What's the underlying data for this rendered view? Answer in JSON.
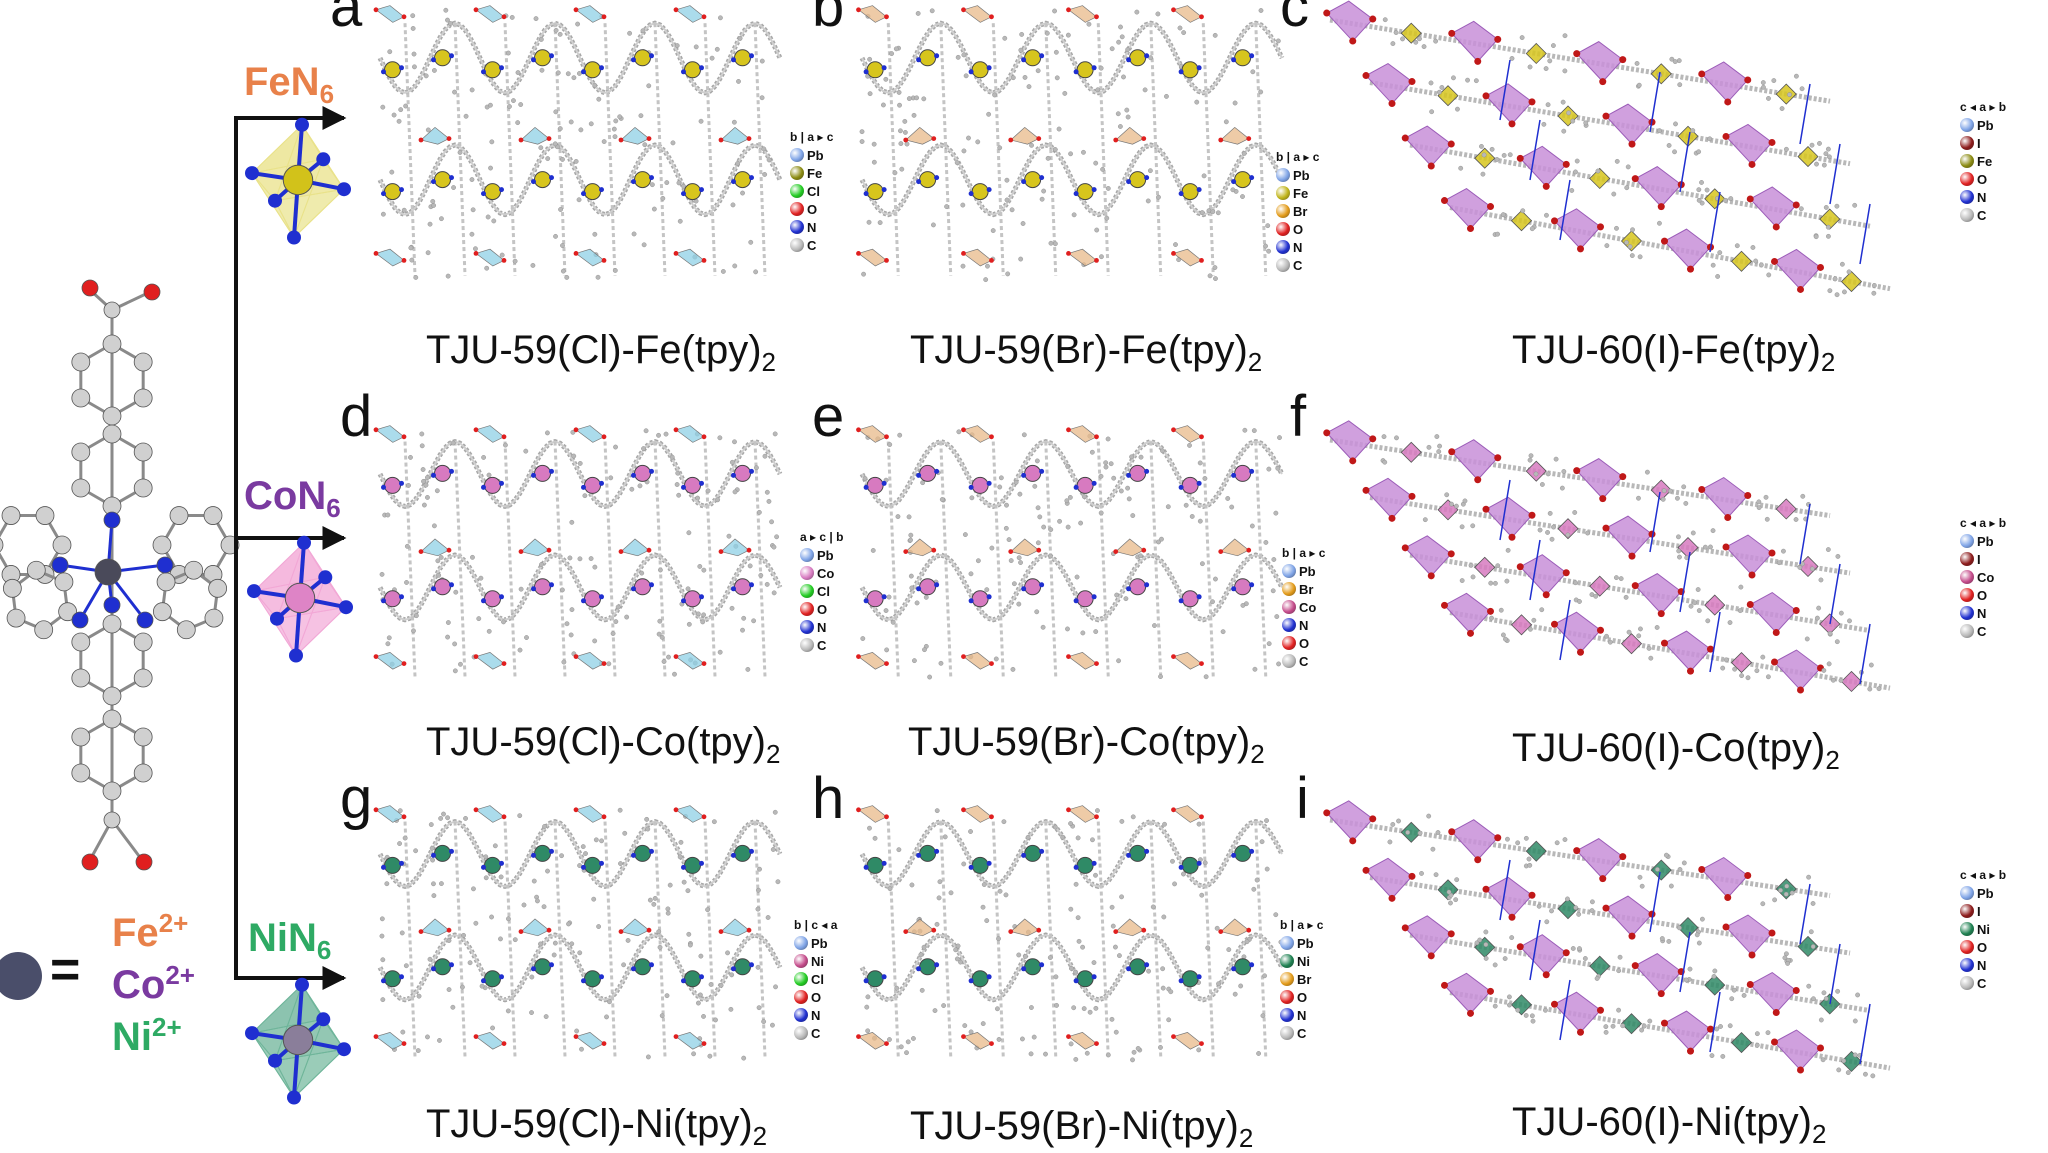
{
  "colors": {
    "fe": "#e8814a",
    "co": "#7a3aa0",
    "ni": "#2eaa64",
    "pb": "#7ea3e6",
    "fe_atom": "#c0b418",
    "co_atom": "#d77ac0",
    "ni_atom": "#1d8050",
    "cl": "#22cc22",
    "br": "#e39b19",
    "i": "#8c1a1a",
    "o": "#e01f1f",
    "n": "#1f2fd0",
    "c": "#b8b8b8"
  },
  "branches": [
    {
      "label": "FeN",
      "sub": "6",
      "color": "#e8814a",
      "atom": "#d2c21a",
      "poly": "#e9e28a"
    },
    {
      "label": "CoN",
      "sub": "6",
      "color": "#7a3aa0",
      "atom": "#de84c6",
      "poly": "#f2a8d6"
    },
    {
      "label": "NiN",
      "sub": "6",
      "color": "#2eaa64",
      "atom": "#8a7e9a",
      "poly": "#6fb59a"
    }
  ],
  "ions": [
    {
      "text": "Fe",
      "charge": "2+",
      "color": "#e8814a"
    },
    {
      "text": "Co",
      "charge": "2+",
      "color": "#7a3aa0"
    },
    {
      "text": "Ni",
      "charge": "2+",
      "color": "#2eaa64"
    }
  ],
  "equals": "=",
  "panels": [
    {
      "letter": "a",
      "caption": "TJU-59(Cl)-Fe(tpy)",
      "sub": "2",
      "type": "wave",
      "poly": "#8fd0e6",
      "metal": "#d7c51d",
      "legend": {
        "axis": "b | a ▸ c",
        "items": [
          [
            "Pb",
            "#7ea3e6"
          ],
          [
            "Fe",
            "#8a8a10"
          ],
          [
            "Cl",
            "#22cc22"
          ],
          [
            "O",
            "#e01f1f"
          ],
          [
            "N",
            "#1f2fd0"
          ],
          [
            "C",
            "#b8b8b8"
          ]
        ]
      }
    },
    {
      "letter": "b",
      "caption": "TJU-59(Br)-Fe(tpy)",
      "sub": "2",
      "type": "wave",
      "poly": "#e8b98a",
      "metal": "#d7c51d",
      "legend": {
        "axis": "b | a ▸ c",
        "items": [
          [
            "Pb",
            "#7ea3e6"
          ],
          [
            "Fe",
            "#c0b418"
          ],
          [
            "Br",
            "#e39b19"
          ],
          [
            "O",
            "#e01f1f"
          ],
          [
            "N",
            "#1f2fd0"
          ],
          [
            "C",
            "#b8b8b8"
          ]
        ]
      }
    },
    {
      "letter": "c",
      "caption": "TJU-60(I)-Fe(tpy)",
      "sub": "2",
      "type": "diag",
      "poly": "#c88fd8",
      "metal": "#d7c51d",
      "legend": {
        "axis": "c ◂ a ▸ b",
        "items": [
          [
            "Pb",
            "#7ea3e6"
          ],
          [
            "I",
            "#8c1a1a"
          ],
          [
            "Fe",
            "#8a8a10"
          ],
          [
            "O",
            "#e01f1f"
          ],
          [
            "N",
            "#1f2fd0"
          ],
          [
            "C",
            "#b8b8b8"
          ]
        ]
      }
    },
    {
      "letter": "d",
      "caption": "TJU-59(Cl)-Co(tpy)",
      "sub": "2",
      "type": "wave",
      "poly": "#8fd0e6",
      "metal": "#d77ac0",
      "legend": {
        "axis": "a ▸ c | b",
        "items": [
          [
            "Pb",
            "#7ea3e6"
          ],
          [
            "Co",
            "#d77ac0"
          ],
          [
            "Cl",
            "#22cc22"
          ],
          [
            "O",
            "#e01f1f"
          ],
          [
            "N",
            "#1f2fd0"
          ],
          [
            "C",
            "#b8b8b8"
          ]
        ]
      }
    },
    {
      "letter": "e",
      "caption": "TJU-59(Br)-Co(tpy)",
      "sub": "2",
      "type": "wave",
      "poly": "#e8b98a",
      "metal": "#d77ac0",
      "legend": {
        "axis": "b | a ▸ c",
        "items": [
          [
            "Pb",
            "#7ea3e6"
          ],
          [
            "Br",
            "#e39b19"
          ],
          [
            "Co",
            "#c44a8a"
          ],
          [
            "N",
            "#1f2fd0"
          ],
          [
            "O",
            "#e01f1f"
          ],
          [
            "C",
            "#b8b8b8"
          ]
        ]
      }
    },
    {
      "letter": "f",
      "caption": "TJU-60(I)-Co(tpy)",
      "sub": "2",
      "type": "diag",
      "poly": "#c88fd8",
      "metal": "#d77ac0",
      "legend": {
        "axis": "c ◂ a ▸ b",
        "items": [
          [
            "Pb",
            "#7ea3e6"
          ],
          [
            "I",
            "#8c1a1a"
          ],
          [
            "Co",
            "#c44a8a"
          ],
          [
            "O",
            "#e01f1f"
          ],
          [
            "N",
            "#1f2fd0"
          ],
          [
            "C",
            "#b8b8b8"
          ]
        ]
      }
    },
    {
      "letter": "g",
      "caption": "TJU-59(Cl)-Ni(tpy)",
      "sub": "2",
      "type": "wave",
      "poly": "#8fd0e6",
      "metal": "#2f8a66",
      "legend": {
        "axis": "b | c ◂ a",
        "items": [
          [
            "Pb",
            "#7ea3e6"
          ],
          [
            "Ni",
            "#c44a8a"
          ],
          [
            "Cl",
            "#22cc22"
          ],
          [
            "O",
            "#e01f1f"
          ],
          [
            "N",
            "#1f2fd0"
          ],
          [
            "C",
            "#b8b8b8"
          ]
        ]
      }
    },
    {
      "letter": "h",
      "caption": "TJU-59(Br)-Ni(tpy)",
      "sub": "2",
      "type": "wave",
      "poly": "#e8b98a",
      "metal": "#2f8a66",
      "legend": {
        "axis": "b | a ▸ c",
        "items": [
          [
            "Pb",
            "#7ea3e6"
          ],
          [
            "Ni",
            "#1d8050"
          ],
          [
            "Br",
            "#e39b19"
          ],
          [
            "O",
            "#e01f1f"
          ],
          [
            "N",
            "#1f2fd0"
          ],
          [
            "C",
            "#b8b8b8"
          ]
        ]
      }
    },
    {
      "letter": "i",
      "caption": "TJU-60(I)-Ni(tpy)",
      "sub": "2",
      "type": "diag",
      "poly": "#c88fd8",
      "metal": "#2f8a66",
      "legend": {
        "axis": "c ◂ a ▸ b",
        "items": [
          [
            "Pb",
            "#7ea3e6"
          ],
          [
            "I",
            "#8c1a1a"
          ],
          [
            "Ni",
            "#1d8050"
          ],
          [
            "O",
            "#e01f1f"
          ],
          [
            "N",
            "#1f2fd0"
          ],
          [
            "C",
            "#b8b8b8"
          ]
        ]
      }
    }
  ]
}
